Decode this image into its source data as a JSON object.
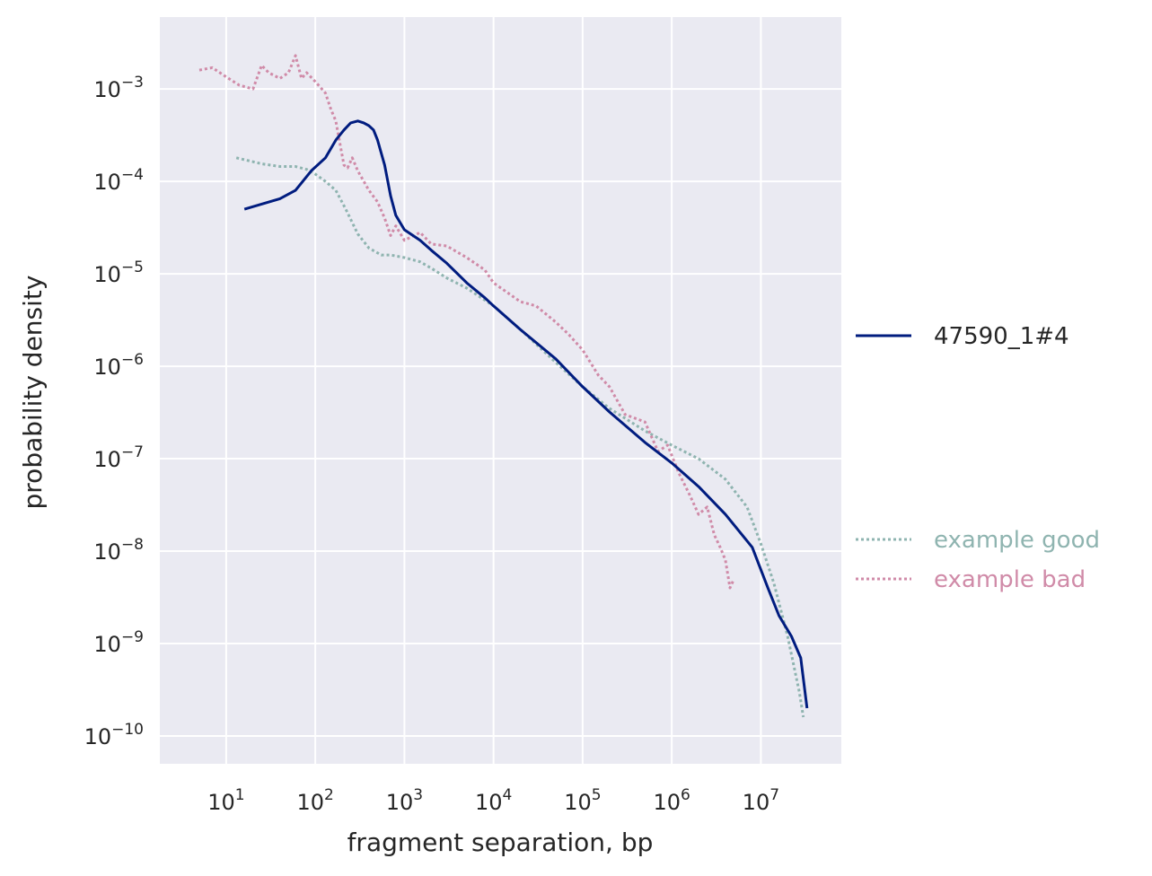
{
  "chart_data": {
    "type": "line",
    "title": "",
    "xlabel": "fragment separation, bp",
    "ylabel": "probability density",
    "x_scale": "log",
    "y_scale": "log",
    "xlim": [
      1.8,
      80000000
    ],
    "ylim": [
      5e-11,
      0.006
    ],
    "grid": true,
    "x_ticks": [
      {
        "value": 10,
        "base": "10",
        "exp": "1"
      },
      {
        "value": 100,
        "base": "10",
        "exp": "2"
      },
      {
        "value": 1000,
        "base": "10",
        "exp": "3"
      },
      {
        "value": 10000,
        "base": "10",
        "exp": "4"
      },
      {
        "value": 100000,
        "base": "10",
        "exp": "5"
      },
      {
        "value": 1000000,
        "base": "10",
        "exp": "6"
      },
      {
        "value": 10000000,
        "base": "10",
        "exp": "7"
      }
    ],
    "y_ticks": [
      {
        "value": 0.001,
        "base": "10",
        "exp": "−3"
      },
      {
        "value": 0.0001,
        "base": "10",
        "exp": "−4"
      },
      {
        "value": 1e-05,
        "base": "10",
        "exp": "−5"
      },
      {
        "value": 1e-06,
        "base": "10",
        "exp": "−6"
      },
      {
        "value": 1e-07,
        "base": "10",
        "exp": "−7"
      },
      {
        "value": 1e-08,
        "base": "10",
        "exp": "−8"
      },
      {
        "value": 1e-09,
        "base": "10",
        "exp": "−9"
      },
      {
        "value": 1e-10,
        "base": "10",
        "exp": "−10"
      }
    ],
    "series": [
      {
        "name": "47590_1#4",
        "color": "#001c7f",
        "style": "solid",
        "x": [
          16,
          40,
          60,
          90,
          130,
          170,
          210,
          250,
          300,
          350,
          400,
          450,
          500,
          600,
          700,
          800,
          1000,
          1500,
          2000,
          3000,
          5000,
          8000,
          10000,
          20000,
          50000,
          100000,
          200000,
          500000,
          1000000,
          2000000,
          4000000,
          8000000,
          12000000,
          16000000,
          22000000,
          28000000,
          33000000
        ],
        "y": [
          5e-05,
          6.5e-05,
          8e-05,
          0.00013,
          0.00018,
          0.00028,
          0.00036,
          0.00043,
          0.00045,
          0.00043,
          0.0004,
          0.00036,
          0.00028,
          0.00015,
          7e-05,
          4.3e-05,
          3e-05,
          2.3e-05,
          1.8e-05,
          1.3e-05,
          8e-06,
          5.5e-06,
          4.5e-06,
          2.5e-06,
          1.2e-06,
          6e-07,
          3.2e-07,
          1.5e-07,
          9e-08,
          5e-08,
          2.5e-08,
          1.1e-08,
          4e-09,
          2e-09,
          1.2e-09,
          7e-10,
          2e-10
        ]
      },
      {
        "name": "example good",
        "color": "#8fb4b0",
        "style": "dotted",
        "x": [
          13,
          25,
          40,
          60,
          80,
          100,
          130,
          170,
          220,
          300,
          400,
          550,
          700,
          1000,
          1500,
          2000,
          3000,
          5000,
          10000,
          20000,
          50000,
          100000,
          200000,
          500000,
          1000000,
          2000000,
          4000000,
          7000000,
          10000000,
          14000000,
          20000000,
          27000000,
          30000000
        ],
        "y": [
          0.00018,
          0.000155,
          0.000145,
          0.000145,
          0.000135,
          0.00012,
          0.0001,
          8e-05,
          5e-05,
          2.7e-05,
          1.9e-05,
          1.6e-05,
          1.6e-05,
          1.5e-05,
          1.35e-05,
          1.15e-05,
          9e-06,
          7e-06,
          4.5e-06,
          2.5e-06,
          1.1e-06,
          6e-07,
          3.5e-07,
          2e-07,
          1.4e-07,
          1e-07,
          6e-08,
          3e-08,
          1.2e-08,
          4.5e-09,
          1.2e-09,
          3e-10,
          1.6e-10
        ]
      },
      {
        "name": "example bad",
        "color": "#d08ba8",
        "style": "dotted",
        "x": [
          5,
          7,
          10,
          14,
          20,
          25,
          30,
          40,
          50,
          60,
          70,
          80,
          100,
          130,
          150,
          170,
          190,
          210,
          230,
          260,
          300,
          400,
          500,
          600,
          700,
          800,
          1000,
          1500,
          2000,
          3000,
          5000,
          8000,
          10000,
          20000,
          30000,
          50000,
          70000,
          100000,
          150000,
          200000,
          300000,
          500000,
          700000,
          900000,
          1200000,
          1600000,
          2000000,
          2500000,
          3000000,
          3500000,
          4000000,
          4500000,
          5000000
        ],
        "y": [
          0.0016,
          0.0017,
          0.00135,
          0.0011,
          0.001,
          0.0018,
          0.0015,
          0.0013,
          0.0015,
          0.0023,
          0.0013,
          0.0015,
          0.0012,
          0.0009,
          0.0006,
          0.00045,
          0.00025,
          0.00015,
          0.00014,
          0.00018,
          0.00013,
          8e-05,
          6e-05,
          4e-05,
          2.6e-05,
          3.3e-05,
          2.3e-05,
          2.8e-05,
          2.1e-05,
          2e-05,
          1.5e-05,
          1.1e-05,
          8e-06,
          5e-06,
          4.5e-06,
          3e-06,
          2.2e-06,
          1.5e-06,
          8e-07,
          6e-07,
          3e-07,
          2.5e-07,
          1.2e-07,
          1.4e-07,
          7e-08,
          4e-08,
          2.5e-08,
          3e-08,
          1.5e-08,
          1.1e-08,
          8e-09,
          4e-09,
          5e-09
        ]
      }
    ],
    "legend_placement": "right"
  }
}
